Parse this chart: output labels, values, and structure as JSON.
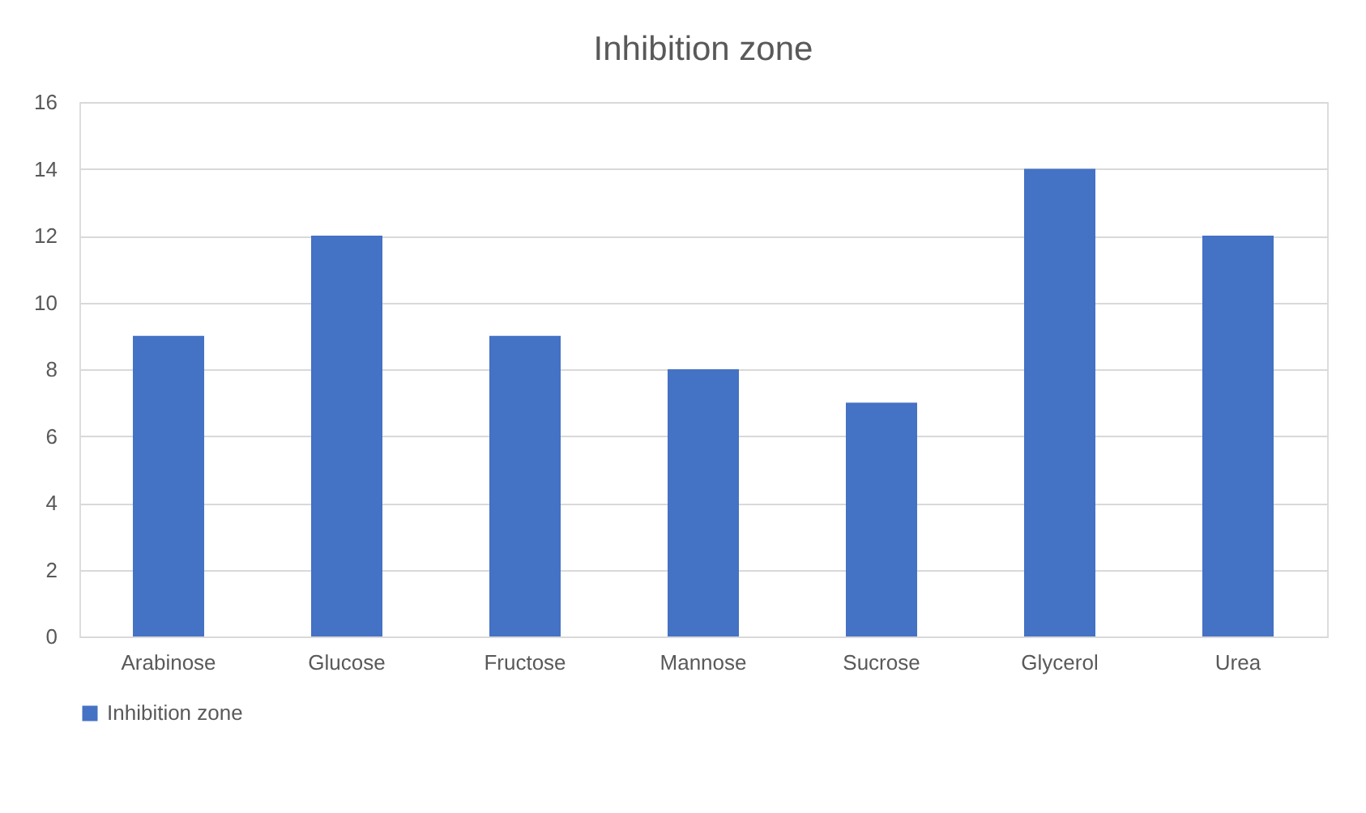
{
  "chart_data": {
    "type": "bar",
    "title": "Inhibition zone",
    "categories": [
      "Arabinose",
      "Glucose",
      "Fructose",
      "Mannose",
      "Sucrose",
      "Glycerol",
      "Urea"
    ],
    "series": [
      {
        "name": "Inhibition zone",
        "color": "#4472c4",
        "values": [
          9,
          12,
          9,
          8,
          7,
          14,
          12
        ]
      }
    ],
    "ylim": [
      0,
      16
    ],
    "yticks": [
      0,
      2,
      4,
      6,
      8,
      10,
      12,
      14,
      16
    ],
    "grid": "y",
    "legend": "bottom"
  }
}
